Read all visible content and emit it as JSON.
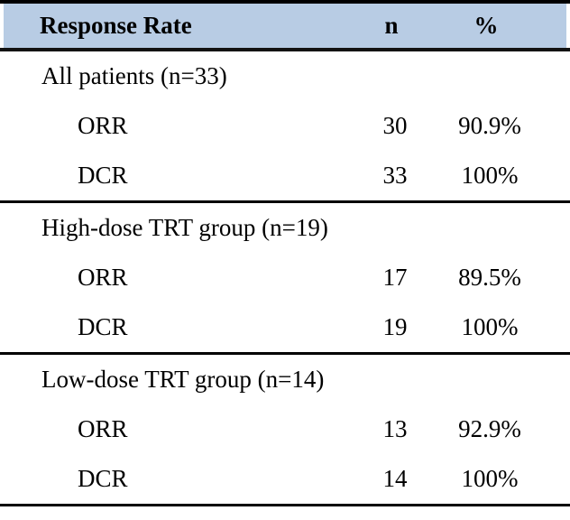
{
  "table": {
    "header": {
      "col1": "Response Rate",
      "col2": "n",
      "col3": "%"
    },
    "sections": [
      {
        "label": "All patients (n=33)",
        "rows": [
          {
            "label": "ORR",
            "n": "30",
            "pct": "90.9%"
          },
          {
            "label": "DCR",
            "n": "33",
            "pct": "100%"
          }
        ]
      },
      {
        "label": "High-dose TRT group (n=19)",
        "rows": [
          {
            "label": "ORR",
            "n": "17",
            "pct": "89.5%"
          },
          {
            "label": "DCR",
            "n": "19",
            "pct": "100%"
          }
        ]
      },
      {
        "label": "Low-dose TRT group (n=14)",
        "rows": [
          {
            "label": "ORR",
            "n": "13",
            "pct": "92.9%"
          },
          {
            "label": "DCR",
            "n": "14",
            "pct": "100%"
          }
        ]
      }
    ],
    "colors": {
      "header_bg": "#b8cce4",
      "border": "#000000"
    }
  }
}
